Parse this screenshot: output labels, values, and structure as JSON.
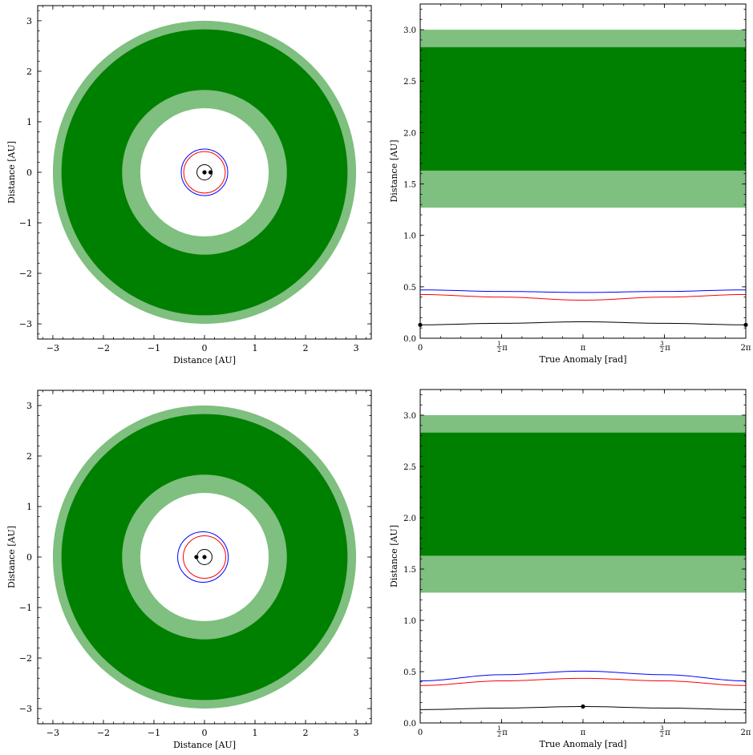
{
  "chart_data": [
    {
      "type": "line",
      "subtype": "orbit-map",
      "xlabel": "Distance [AU]",
      "ylabel": "Distance [AU]",
      "xlim": [
        -3.3,
        3.3
      ],
      "ylim": [
        -3.3,
        3.3
      ],
      "xticks": [
        -3,
        -2,
        -1,
        0,
        1,
        2,
        3
      ],
      "yticks": [
        -3,
        -2,
        -1,
        0,
        1,
        2,
        3
      ],
      "annuli": [
        {
          "inner": 1.27,
          "outer": 3.0,
          "color": "#7fbf7f"
        },
        {
          "inner": 1.63,
          "outer": 2.83,
          "color": "#008000"
        }
      ],
      "circles": [
        {
          "radius": 0.15,
          "color": "#000000"
        },
        {
          "radius": 0.41,
          "color": "#ff0000"
        },
        {
          "radius": 0.46,
          "color": "#0000ff"
        }
      ],
      "points": [
        {
          "x": 0.0,
          "y": 0.0,
          "color": "#000000"
        },
        {
          "x": 0.12,
          "y": 0.0,
          "color": "#000000"
        }
      ]
    },
    {
      "type": "line",
      "xlabel": "True Anomaly [rad]",
      "ylabel": "Distance [AU]",
      "xlim": [
        0,
        6.2832
      ],
      "ylim": [
        0,
        3.25
      ],
      "yticks": [
        0.0,
        0.5,
        1.0,
        1.5,
        2.0,
        2.5,
        3.0
      ],
      "ytick_labels": [
        "0.0",
        "0.5",
        "1.0",
        "1.5",
        "2.0",
        "2.5",
        "3.0"
      ],
      "xticks": [
        0,
        1.5708,
        3.1416,
        4.7124,
        6.2832
      ],
      "xtick_labels": [
        "0",
        "½π",
        "π",
        "3/2π",
        "2π"
      ],
      "bands": [
        {
          "from": 1.27,
          "to": 3.0,
          "color": "#7fbf7f"
        },
        {
          "from": 1.63,
          "to": 2.83,
          "color": "#008000"
        }
      ],
      "series": [
        {
          "color": "#0000ff",
          "x": [
            0,
            1.5708,
            3.1416,
            4.7124,
            6.2832
          ],
          "y": [
            0.47,
            0.455,
            0.445,
            0.455,
            0.47
          ]
        },
        {
          "color": "#ff0000",
          "x": [
            0,
            1.5708,
            3.1416,
            4.7124,
            6.2832
          ],
          "y": [
            0.425,
            0.4,
            0.37,
            0.4,
            0.425
          ]
        },
        {
          "color": "#000000",
          "x": [
            0,
            1.5708,
            3.1416,
            4.7124,
            6.2832
          ],
          "y": [
            0.13,
            0.145,
            0.16,
            0.145,
            0.13
          ]
        }
      ],
      "points": [
        {
          "x": 0,
          "y": 0.13,
          "color": "#000000"
        },
        {
          "x": 6.2832,
          "y": 0.13,
          "color": "#000000"
        }
      ]
    },
    {
      "type": "line",
      "subtype": "orbit-map",
      "xlabel": "Distance [AU]",
      "ylabel": "Distance [AU]",
      "xlim": [
        -3.3,
        3.3
      ],
      "ylim": [
        -3.3,
        3.3
      ],
      "xticks": [
        -3,
        -2,
        -1,
        0,
        1,
        2,
        3
      ],
      "yticks": [
        -3,
        -2,
        -1,
        0,
        1,
        2,
        3
      ],
      "annuli": [
        {
          "inner": 1.27,
          "outer": 3.0,
          "color": "#7fbf7f"
        },
        {
          "inner": 1.63,
          "outer": 2.83,
          "color": "#008000"
        }
      ],
      "circles": [
        {
          "radius": 0.15,
          "color": "#000000"
        },
        {
          "radius": 0.42,
          "color": "#ff0000"
        },
        {
          "radius": 0.5,
          "color": "#0000ff",
          "cx": -0.03
        }
      ],
      "points": [
        {
          "x": 0.0,
          "y": 0.0,
          "color": "#000000"
        },
        {
          "x": -0.16,
          "y": 0.0,
          "color": "#000000"
        }
      ]
    },
    {
      "type": "line",
      "xlabel": "True Anomaly [rad]",
      "ylabel": "Distance [AU]",
      "xlim": [
        0,
        6.2832
      ],
      "ylim": [
        0,
        3.25
      ],
      "yticks": [
        0.0,
        0.5,
        1.0,
        1.5,
        2.0,
        2.5,
        3.0
      ],
      "ytick_labels": [
        "0.0",
        "0.5",
        "1.0",
        "1.5",
        "2.0",
        "2.5",
        "3.0"
      ],
      "xticks": [
        0,
        1.5708,
        3.1416,
        4.7124,
        6.2832
      ],
      "xtick_labels": [
        "0",
        "½π",
        "π",
        "3/2π",
        "2π"
      ],
      "bands": [
        {
          "from": 1.27,
          "to": 3.0,
          "color": "#7fbf7f"
        },
        {
          "from": 1.63,
          "to": 2.83,
          "color": "#008000"
        }
      ],
      "series": [
        {
          "color": "#0000ff",
          "x": [
            0,
            1.5708,
            3.1416,
            4.7124,
            6.2832
          ],
          "y": [
            0.41,
            0.47,
            0.505,
            0.47,
            0.41
          ]
        },
        {
          "color": "#ff0000",
          "x": [
            0,
            1.5708,
            3.1416,
            4.7124,
            6.2832
          ],
          "y": [
            0.365,
            0.41,
            0.435,
            0.41,
            0.365
          ]
        },
        {
          "color": "#000000",
          "x": [
            0,
            1.5708,
            3.1416,
            4.7124,
            6.2832
          ],
          "y": [
            0.13,
            0.145,
            0.16,
            0.145,
            0.13
          ]
        }
      ],
      "points": [
        {
          "x": 3.1416,
          "y": 0.16,
          "color": "#000000"
        }
      ]
    }
  ]
}
